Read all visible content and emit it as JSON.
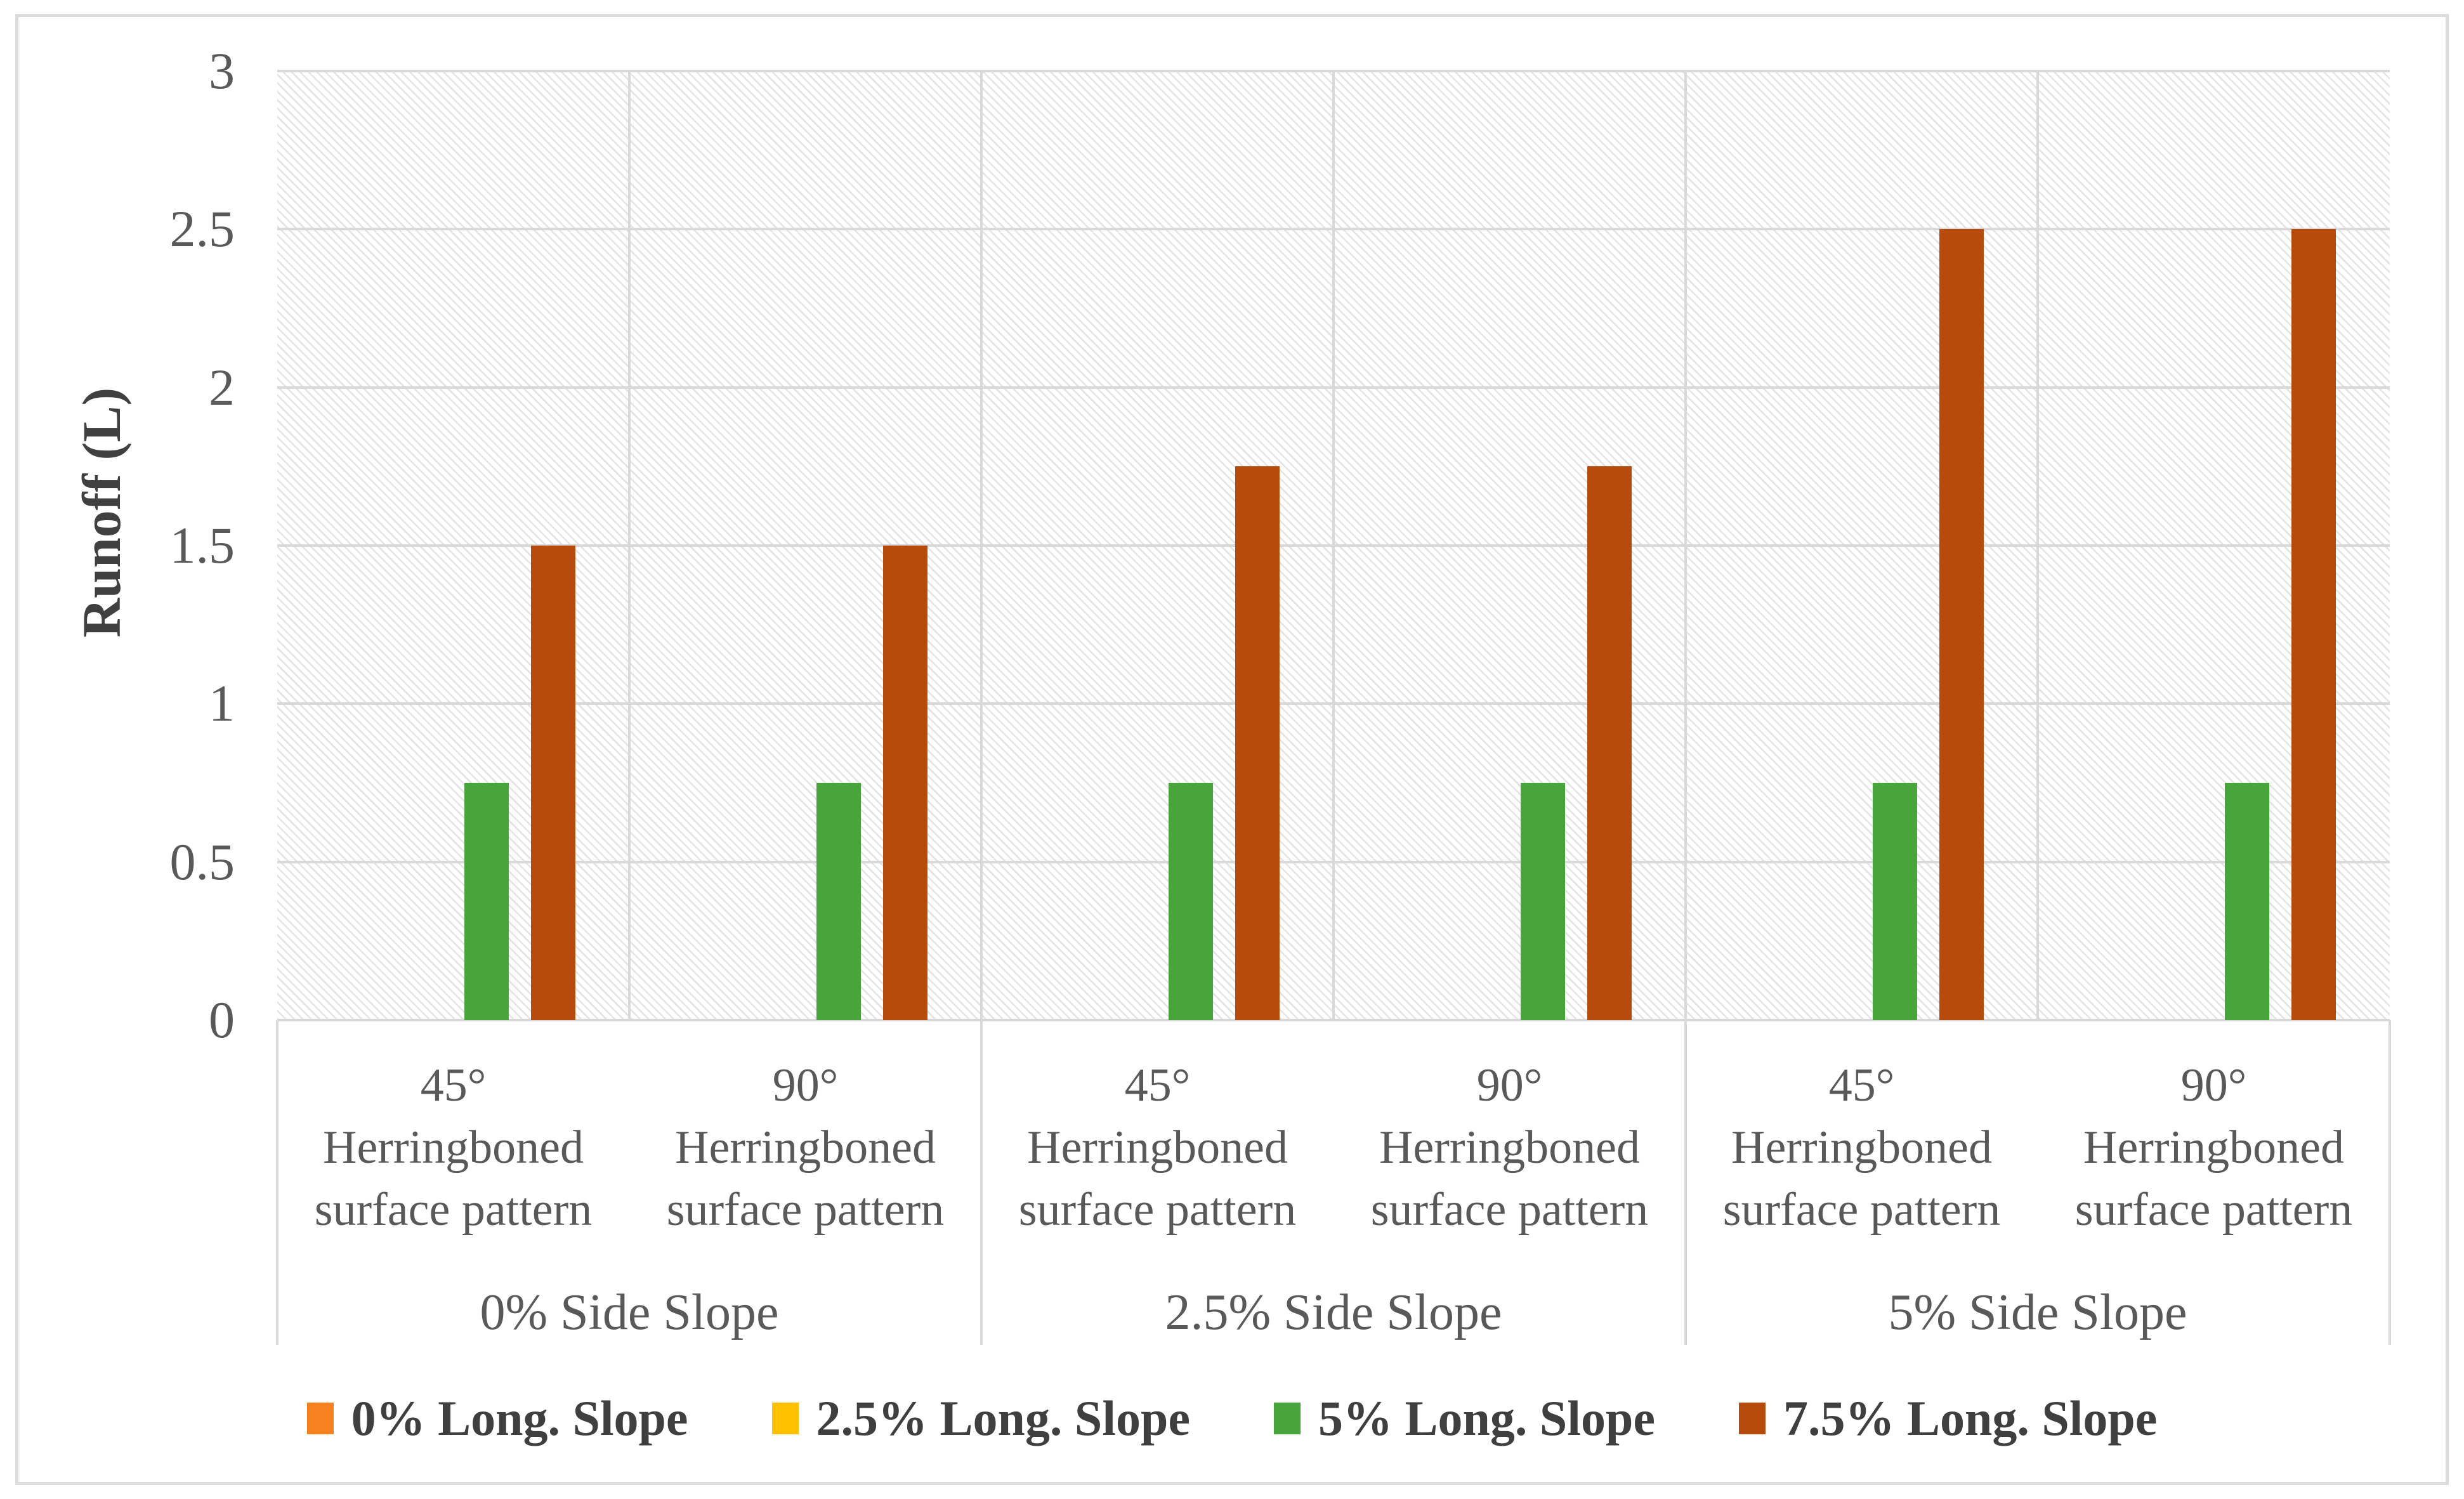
{
  "chart_data": {
    "type": "bar",
    "title": "",
    "xlabel": "",
    "ylabel": "Runoff (L)",
    "ylim": [
      0,
      3
    ],
    "ytick_step": 0.5,
    "ytick_labels": [
      "0",
      "0.5",
      "1",
      "1.5",
      "2",
      "2.5",
      "3"
    ],
    "grid": "horizontal-and-category-separators",
    "plot_background": "diagonal-hatch",
    "legend_position": "bottom",
    "groups": [
      {
        "label": "0% Side Slope",
        "categories": [
          {
            "angle": "45°",
            "line1": "Herringboned",
            "line2": "surface pattern"
          },
          {
            "angle": "90°",
            "line1": "Herringboned",
            "line2": "surface pattern"
          }
        ]
      },
      {
        "label": "2.5% Side Slope",
        "categories": [
          {
            "angle": "45°",
            "line1": "Herringboned",
            "line2": "surface pattern"
          },
          {
            "angle": "90°",
            "line1": "Herringboned",
            "line2": "surface pattern"
          }
        ]
      },
      {
        "label": "5% Side Slope",
        "categories": [
          {
            "angle": "45°",
            "line1": "Herringboned",
            "line2": "surface pattern"
          },
          {
            "angle": "90°",
            "line1": "Herringboned",
            "line2": "surface pattern"
          }
        ]
      }
    ],
    "categories": [
      "45° Herringboned surface pattern | 0% Side Slope",
      "90° Herringboned surface pattern | 0% Side Slope",
      "45° Herringboned surface pattern | 2.5% Side Slope",
      "90° Herringboned surface pattern | 2.5% Side Slope",
      "45° Herringboned surface pattern | 5% Side Slope",
      "90° Herringboned surface pattern | 5% Side Slope"
    ],
    "series": [
      {
        "name": "0% Long. Slope",
        "color": "#F8811F",
        "values": [
          0,
          0,
          0,
          0,
          0,
          0
        ]
      },
      {
        "name": "2.5% Long. Slope",
        "color": "#FFC000",
        "values": [
          0,
          0,
          0,
          0,
          0,
          0
        ]
      },
      {
        "name": "5% Long. Slope",
        "color": "#47A53C",
        "values": [
          0.75,
          0.75,
          0.75,
          0.75,
          0.75,
          0.75
        ]
      },
      {
        "name": "7.5% Long. Slope",
        "color": "#B64B0C",
        "values": [
          1.5,
          1.5,
          1.75,
          1.75,
          2.5,
          2.5
        ]
      }
    ],
    "colors": {
      "gridline": "#D9D9D9",
      "hatch_line": "#E4E4E4",
      "axis_text": "#595959",
      "legend_text": "#3F3F3F",
      "border": "#DBDBDB"
    }
  }
}
